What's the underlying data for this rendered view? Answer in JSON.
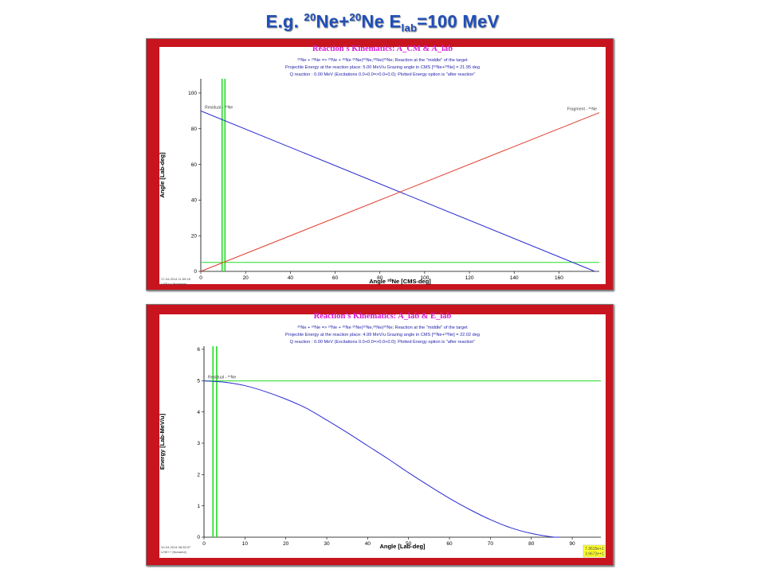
{
  "slide": {
    "title_prefix": "E.g. ",
    "title_sup1": "20",
    "title_mid": "Ne+",
    "title_sup2": "20",
    "title_mid2": "Ne E",
    "title_sub": "lab",
    "title_suffix": "=100 MeV"
  },
  "colors": {
    "frame": "#c8141e",
    "residual": "#2a2ad2",
    "fragment": "#e03a2a",
    "green": "#22dd22",
    "title_magenta": "#d21ad2",
    "info_blue": "#2222aa"
  },
  "chart_data": [
    {
      "type": "line",
      "title": "Reaction's Kinematics:  A_CM  &  A_lab",
      "info": [
        "²⁰Ne + ²⁰Ne => ²⁰Ne + ²⁰Ne      ²⁰Ne(²⁰Ne,²⁰Ne)²⁰Ne;  Reaction at the \"middle\" of the target",
        "Projectile Energy at the reaction place:  5.00 MeV/u          Grazing angle in CMS [²⁰Ne+²⁰Ne] = 21.95 deg",
        "Q reaction :  0.00 MeV  (Excitations 0.0+0.0=>0.0+0.0);   Plotted Energy option is \"after reaction\""
      ],
      "xlabel": "Angle ²⁰Ne [CMS-deg]",
      "ylabel": "Angle [Lab-deg]",
      "xlim": [
        0,
        178
      ],
      "ylim": [
        0,
        108
      ],
      "xticks": [
        0,
        20,
        40,
        60,
        80,
        100,
        120,
        140,
        160
      ],
      "yticks": [
        0,
        20,
        40,
        60,
        80,
        100
      ],
      "series": [
        {
          "name": "Residual - ²⁰Ne",
          "color_key": "residual",
          "x": [
            0,
            176
          ],
          "y": [
            90,
            0
          ]
        },
        {
          "name": "Fragment - ²⁰Ne",
          "color_key": "fragment",
          "x": [
            0,
            178
          ],
          "y": [
            0,
            89
          ]
        }
      ],
      "vlines": [
        9.5,
        10.8
      ],
      "hlines": [
        5
      ],
      "footer": [
        "17-04-2014  11:59:18",
        "LISE++  [Noname]"
      ]
    },
    {
      "type": "line",
      "title": "Reaction's Kinematics:  A_lab  &  E_lab",
      "info": [
        "²⁰Ne + ²⁰Ne => ²⁰Ne + ²⁰Ne      ²⁰Ne(²⁰Ne,²⁰Ne)²⁰Ne;  Reaction at the \"middle\" of the target",
        "Projectile Energy at the reaction place:  4.99 MeV/u          Grazing angle in CMS [²⁰Ne+²⁰Ne] = 22.02 deg",
        "Q reaction :  0.00 MeV  (Excitations 0.0+0.0=>0.0+0.0);   Plotted Energy option is \"after reaction\""
      ],
      "xlabel": "Angle [Lab-deg]",
      "ylabel": "Energy [Lab-MeV/u]",
      "xlim": [
        0,
        97
      ],
      "ylim": [
        0,
        6.1
      ],
      "xticks": [
        0,
        10,
        20,
        30,
        40,
        50,
        60,
        70,
        80,
        90
      ],
      "yticks": [
        0,
        1,
        2,
        3,
        4,
        5,
        6
      ],
      "series": [
        {
          "name": "Residual - ²⁰Ne",
          "color_key": "residual",
          "x": [
            0,
            5,
            10,
            15,
            20,
            25,
            30,
            35,
            40,
            45,
            50,
            55,
            60,
            65,
            70,
            75,
            80,
            85,
            87
          ],
          "y": [
            4.99,
            4.95,
            4.84,
            4.65,
            4.41,
            4.12,
            3.74,
            3.34,
            2.92,
            2.5,
            2.06,
            1.64,
            1.24,
            0.88,
            0.56,
            0.3,
            0.12,
            0.01,
            0.0
          ]
        }
      ],
      "vlines": [
        2.2,
        3.1
      ],
      "hlines": [
        4.99
      ],
      "footer": [
        "10-04-2014  08:28:37",
        "LISE++  [Noname]"
      ],
      "corner_readout": [
        "7.3615e+1",
        "3.9672e+1"
      ]
    }
  ]
}
